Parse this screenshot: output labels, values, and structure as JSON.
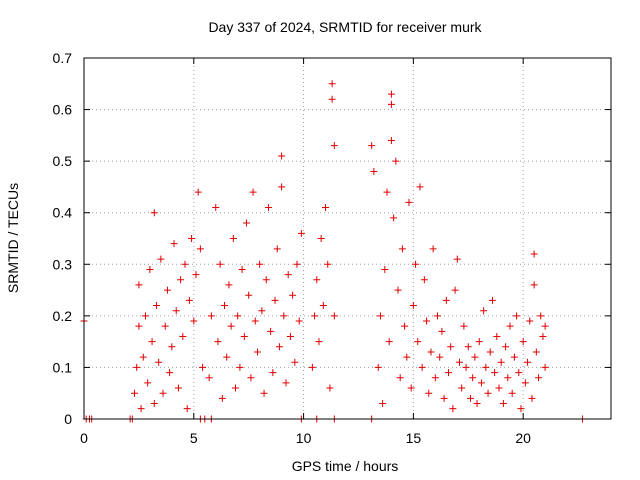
{
  "chart_data": {
    "type": "scatter",
    "title": "Day 337 of 2024, SRMTID for receiver murk",
    "xlabel": "GPS time / hours",
    "ylabel": "SRMTID / TECUs",
    "xlim": [
      0,
      24
    ],
    "ylim": [
      0,
      0.7
    ],
    "x_ticks": [
      "0",
      "5",
      "10",
      "15",
      "20"
    ],
    "y_ticks": [
      "0",
      "0.1",
      "0.2",
      "0.3",
      "0.4",
      "0.5",
      "0.6",
      "0.7"
    ],
    "grid": true,
    "legend": "none",
    "marker": "plus",
    "color": "#e00000",
    "series": [
      {
        "values_note_free": true,
        "points": [
          [
            0.0,
            0.19
          ],
          [
            0.1,
            0.0
          ],
          [
            0.25,
            0.0
          ],
          [
            0.35,
            0.0
          ],
          [
            2.1,
            0.0
          ],
          [
            2.2,
            0.0
          ],
          [
            5.3,
            0.0
          ],
          [
            5.5,
            0.0
          ],
          [
            5.8,
            0.0
          ],
          [
            9.9,
            0.0
          ],
          [
            10.6,
            0.0
          ],
          [
            11.4,
            0.0
          ],
          [
            13.1,
            0.0
          ],
          [
            22.7,
            0.0
          ],
          [
            2.3,
            0.05
          ],
          [
            2.4,
            0.1
          ],
          [
            2.5,
            0.18
          ],
          [
            2.5,
            0.26
          ],
          [
            2.6,
            0.02
          ],
          [
            2.7,
            0.12
          ],
          [
            2.8,
            0.2
          ],
          [
            2.9,
            0.07
          ],
          [
            3.0,
            0.29
          ],
          [
            3.1,
            0.15
          ],
          [
            3.2,
            0.4
          ],
          [
            3.2,
            0.03
          ],
          [
            3.3,
            0.22
          ],
          [
            3.4,
            0.11
          ],
          [
            3.5,
            0.31
          ],
          [
            3.6,
            0.05
          ],
          [
            3.7,
            0.18
          ],
          [
            3.8,
            0.25
          ],
          [
            3.9,
            0.09
          ],
          [
            4.0,
            0.14
          ],
          [
            4.1,
            0.34
          ],
          [
            4.2,
            0.21
          ],
          [
            4.3,
            0.06
          ],
          [
            4.4,
            0.27
          ],
          [
            4.5,
            0.16
          ],
          [
            4.6,
            0.3
          ],
          [
            4.7,
            0.02
          ],
          [
            4.8,
            0.23
          ],
          [
            4.9,
            0.35
          ],
          [
            5.0,
            0.19
          ],
          [
            5.1,
            0.28
          ],
          [
            5.2,
            0.44
          ],
          [
            5.3,
            0.33
          ],
          [
            5.4,
            0.1
          ],
          [
            5.7,
            0.08
          ],
          [
            5.8,
            0.2
          ],
          [
            6.0,
            0.41
          ],
          [
            6.1,
            0.15
          ],
          [
            6.2,
            0.3
          ],
          [
            6.3,
            0.04
          ],
          [
            6.4,
            0.22
          ],
          [
            6.5,
            0.12
          ],
          [
            6.6,
            0.26
          ],
          [
            6.7,
            0.18
          ],
          [
            6.8,
            0.35
          ],
          [
            6.9,
            0.06
          ],
          [
            7.0,
            0.2
          ],
          [
            7.1,
            0.1
          ],
          [
            7.2,
            0.29
          ],
          [
            7.3,
            0.16
          ],
          [
            7.4,
            0.38
          ],
          [
            7.5,
            0.24
          ],
          [
            7.6,
            0.08
          ],
          [
            7.7,
            0.44
          ],
          [
            7.8,
            0.19
          ],
          [
            7.9,
            0.13
          ],
          [
            8.0,
            0.3
          ],
          [
            8.1,
            0.21
          ],
          [
            8.2,
            0.05
          ],
          [
            8.3,
            0.27
          ],
          [
            8.4,
            0.41
          ],
          [
            8.5,
            0.17
          ],
          [
            8.6,
            0.09
          ],
          [
            8.7,
            0.23
          ],
          [
            8.8,
            0.33
          ],
          [
            8.9,
            0.14
          ],
          [
            9.0,
            0.45
          ],
          [
            9.0,
            0.51
          ],
          [
            9.1,
            0.2
          ],
          [
            9.2,
            0.07
          ],
          [
            9.3,
            0.28
          ],
          [
            9.4,
            0.16
          ],
          [
            9.5,
            0.24
          ],
          [
            9.6,
            0.11
          ],
          [
            9.7,
            0.3
          ],
          [
            9.8,
            0.19
          ],
          [
            9.9,
            0.36
          ],
          [
            10.4,
            0.1
          ],
          [
            10.5,
            0.2
          ],
          [
            10.6,
            0.27
          ],
          [
            10.7,
            0.15
          ],
          [
            10.8,
            0.35
          ],
          [
            10.9,
            0.22
          ],
          [
            11.0,
            0.41
          ],
          [
            11.1,
            0.3
          ],
          [
            11.2,
            0.06
          ],
          [
            11.3,
            0.65
          ],
          [
            11.3,
            0.62
          ],
          [
            11.4,
            0.53
          ],
          [
            11.4,
            0.2
          ],
          [
            13.1,
            0.53
          ],
          [
            13.2,
            0.48
          ],
          [
            13.4,
            0.1
          ],
          [
            13.5,
            0.2
          ],
          [
            13.6,
            0.03
          ],
          [
            13.7,
            0.29
          ],
          [
            13.8,
            0.44
          ],
          [
            13.9,
            0.15
          ],
          [
            14.0,
            0.63
          ],
          [
            14.0,
            0.61
          ],
          [
            14.0,
            0.54
          ],
          [
            14.1,
            0.39
          ],
          [
            14.2,
            0.5
          ],
          [
            14.3,
            0.25
          ],
          [
            14.4,
            0.08
          ],
          [
            14.5,
            0.33
          ],
          [
            14.6,
            0.18
          ],
          [
            14.7,
            0.12
          ],
          [
            14.8,
            0.42
          ],
          [
            14.9,
            0.06
          ],
          [
            15.0,
            0.22
          ],
          [
            15.1,
            0.3
          ],
          [
            15.2,
            0.15
          ],
          [
            15.3,
            0.45
          ],
          [
            15.4,
            0.1
          ],
          [
            15.5,
            0.27
          ],
          [
            15.6,
            0.19
          ],
          [
            15.7,
            0.05
          ],
          [
            15.8,
            0.13
          ],
          [
            15.9,
            0.33
          ],
          [
            16.0,
            0.08
          ],
          [
            16.1,
            0.2
          ],
          [
            16.2,
            0.12
          ],
          [
            16.3,
            0.17
          ],
          [
            16.4,
            0.04
          ],
          [
            16.5,
            0.23
          ],
          [
            16.6,
            0.09
          ],
          [
            16.7,
            0.14
          ],
          [
            16.8,
            0.02
          ],
          [
            16.9,
            0.25
          ],
          [
            17.0,
            0.31
          ],
          [
            17.1,
            0.11
          ],
          [
            17.2,
            0.06
          ],
          [
            17.3,
            0.18
          ],
          [
            17.4,
            0.1
          ],
          [
            17.5,
            0.14
          ],
          [
            17.6,
            0.04
          ],
          [
            17.7,
            0.08
          ],
          [
            17.8,
            0.12
          ],
          [
            17.9,
            0.03
          ],
          [
            18.0,
            0.15
          ],
          [
            18.1,
            0.07
          ],
          [
            18.2,
            0.21
          ],
          [
            18.3,
            0.1
          ],
          [
            18.4,
            0.05
          ],
          [
            18.5,
            0.13
          ],
          [
            18.6,
            0.23
          ],
          [
            18.7,
            0.09
          ],
          [
            18.8,
            0.16
          ],
          [
            18.9,
            0.06
          ],
          [
            19.0,
            0.11
          ],
          [
            19.1,
            0.03
          ],
          [
            19.2,
            0.14
          ],
          [
            19.3,
            0.08
          ],
          [
            19.4,
            0.18
          ],
          [
            19.5,
            0.05
          ],
          [
            19.6,
            0.12
          ],
          [
            19.7,
            0.2
          ],
          [
            19.8,
            0.09
          ],
          [
            19.9,
            0.02
          ],
          [
            20.0,
            0.15
          ],
          [
            20.1,
            0.07
          ],
          [
            20.2,
            0.11
          ],
          [
            20.3,
            0.19
          ],
          [
            20.4,
            0.04
          ],
          [
            20.5,
            0.26
          ],
          [
            20.5,
            0.32
          ],
          [
            20.6,
            0.13
          ],
          [
            20.7,
            0.08
          ],
          [
            20.8,
            0.2
          ],
          [
            20.9,
            0.16
          ],
          [
            21.0,
            0.1
          ],
          [
            21.0,
            0.18
          ]
        ]
      }
    ]
  }
}
